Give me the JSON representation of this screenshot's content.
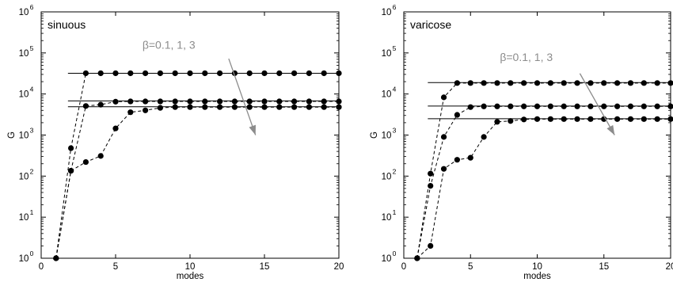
{
  "chart_data": [
    {
      "type": "line",
      "title": "sinuous",
      "xlabel": "modes",
      "ylabel": "G",
      "xlim": [
        0,
        20
      ],
      "ylim": [
        1,
        1000000
      ],
      "yscale": "log",
      "xticks": [
        0,
        5,
        10,
        15,
        20
      ],
      "xtick_labels": [
        "0",
        "5",
        "10",
        "15",
        "20"
      ],
      "yticks": [
        1,
        10,
        100,
        1000,
        10000,
        100000,
        1000000
      ],
      "ytick_labels": [
        {
          "base": "10",
          "exp": "0"
        },
        {
          "base": "10",
          "exp": "1"
        },
        {
          "base": "10",
          "exp": "2"
        },
        {
          "base": "10",
          "exp": "3"
        },
        {
          "base": "10",
          "exp": "4"
        },
        {
          "base": "10",
          "exp": "5"
        },
        {
          "base": "10",
          "exp": "6"
        }
      ],
      "annotation": "β=0.1, 1, 3",
      "annotation_color": "#8c8c8c",
      "grid": false,
      "series": [
        {
          "x": [
            1,
            2,
            3,
            4,
            5,
            6,
            7,
            8,
            9,
            10,
            11,
            12,
            13,
            14,
            15,
            16,
            17,
            18,
            19,
            20
          ],
          "values": [
            1,
            480,
            32000,
            32000,
            32000,
            32000,
            32000,
            32000,
            32000,
            32000,
            32000,
            32000,
            32000,
            32000,
            32000,
            32000,
            32000,
            32000,
            32000,
            32000
          ],
          "asymptote": 32000
        },
        {
          "x": [
            1,
            2,
            3,
            4,
            5,
            6,
            7,
            8,
            9,
            10,
            11,
            12,
            13,
            14,
            15,
            16,
            17,
            18,
            19,
            20
          ],
          "values": [
            1,
            135,
            5100,
            5500,
            6500,
            6600,
            6600,
            6600,
            6600,
            6600,
            6600,
            6600,
            6600,
            6600,
            6600,
            6600,
            6600,
            6600,
            6600,
            6600
          ],
          "asymptote": 6800
        },
        {
          "x": [
            1,
            2,
            3,
            4,
            5,
            6,
            7,
            8,
            9,
            10,
            11,
            12,
            13,
            14,
            15,
            16,
            17,
            18,
            19,
            20
          ],
          "values": [
            1,
            135,
            220,
            310,
            1450,
            3600,
            4000,
            4600,
            4800,
            4800,
            4800,
            4800,
            4800,
            4800,
            4800,
            4800,
            4800,
            4800,
            4800,
            4800
          ],
          "asymptote": 4900
        }
      ]
    },
    {
      "type": "line",
      "title": "varicose",
      "xlabel": "modes",
      "ylabel": "G",
      "xlim": [
        0,
        20
      ],
      "ylim": [
        1,
        1000000
      ],
      "yscale": "log",
      "xticks": [
        0,
        5,
        10,
        15,
        20
      ],
      "xtick_labels": [
        "0",
        "5",
        "10",
        "15",
        "20"
      ],
      "yticks": [
        1,
        10,
        100,
        1000,
        10000,
        100000,
        1000000
      ],
      "ytick_labels": [
        {
          "base": "10",
          "exp": "0"
        },
        {
          "base": "10",
          "exp": "1"
        },
        {
          "base": "10",
          "exp": "2"
        },
        {
          "base": "10",
          "exp": "3"
        },
        {
          "base": "10",
          "exp": "4"
        },
        {
          "base": "10",
          "exp": "5"
        },
        {
          "base": "10",
          "exp": "6"
        }
      ],
      "annotation": "β=0.1, 1, 3",
      "annotation_color": "#8c8c8c",
      "grid": false,
      "series": [
        {
          "x": [
            1,
            2,
            3,
            4,
            5,
            6,
            7,
            8,
            9,
            10,
            11,
            12,
            13,
            14,
            15,
            16,
            17,
            18,
            19,
            20
          ],
          "values": [
            1,
            115,
            8300,
            18500,
            18500,
            18500,
            18500,
            18500,
            18500,
            18500,
            18500,
            18500,
            18500,
            18500,
            18500,
            18500,
            18500,
            18500,
            18500,
            18500
          ],
          "asymptote": 19000
        },
        {
          "x": [
            1,
            2,
            3,
            4,
            5,
            6,
            7,
            8,
            9,
            10,
            11,
            12,
            13,
            14,
            15,
            16,
            17,
            18,
            19,
            20
          ],
          "values": [
            1,
            58,
            900,
            3100,
            4800,
            5000,
            5000,
            5000,
            5000,
            5000,
            5000,
            5000,
            5000,
            5000,
            5000,
            5000,
            5000,
            5000,
            5000,
            5000
          ],
          "asymptote": 5100
        },
        {
          "x": [
            1,
            2,
            3,
            4,
            5,
            6,
            7,
            8,
            9,
            10,
            11,
            12,
            13,
            14,
            15,
            16,
            17,
            18,
            19,
            20
          ],
          "values": [
            1,
            2,
            150,
            250,
            280,
            900,
            2100,
            2200,
            2400,
            2450,
            2450,
            2450,
            2450,
            2450,
            2450,
            2450,
            2450,
            2450,
            2450,
            2450
          ],
          "asymptote": 2500
        }
      ]
    }
  ]
}
